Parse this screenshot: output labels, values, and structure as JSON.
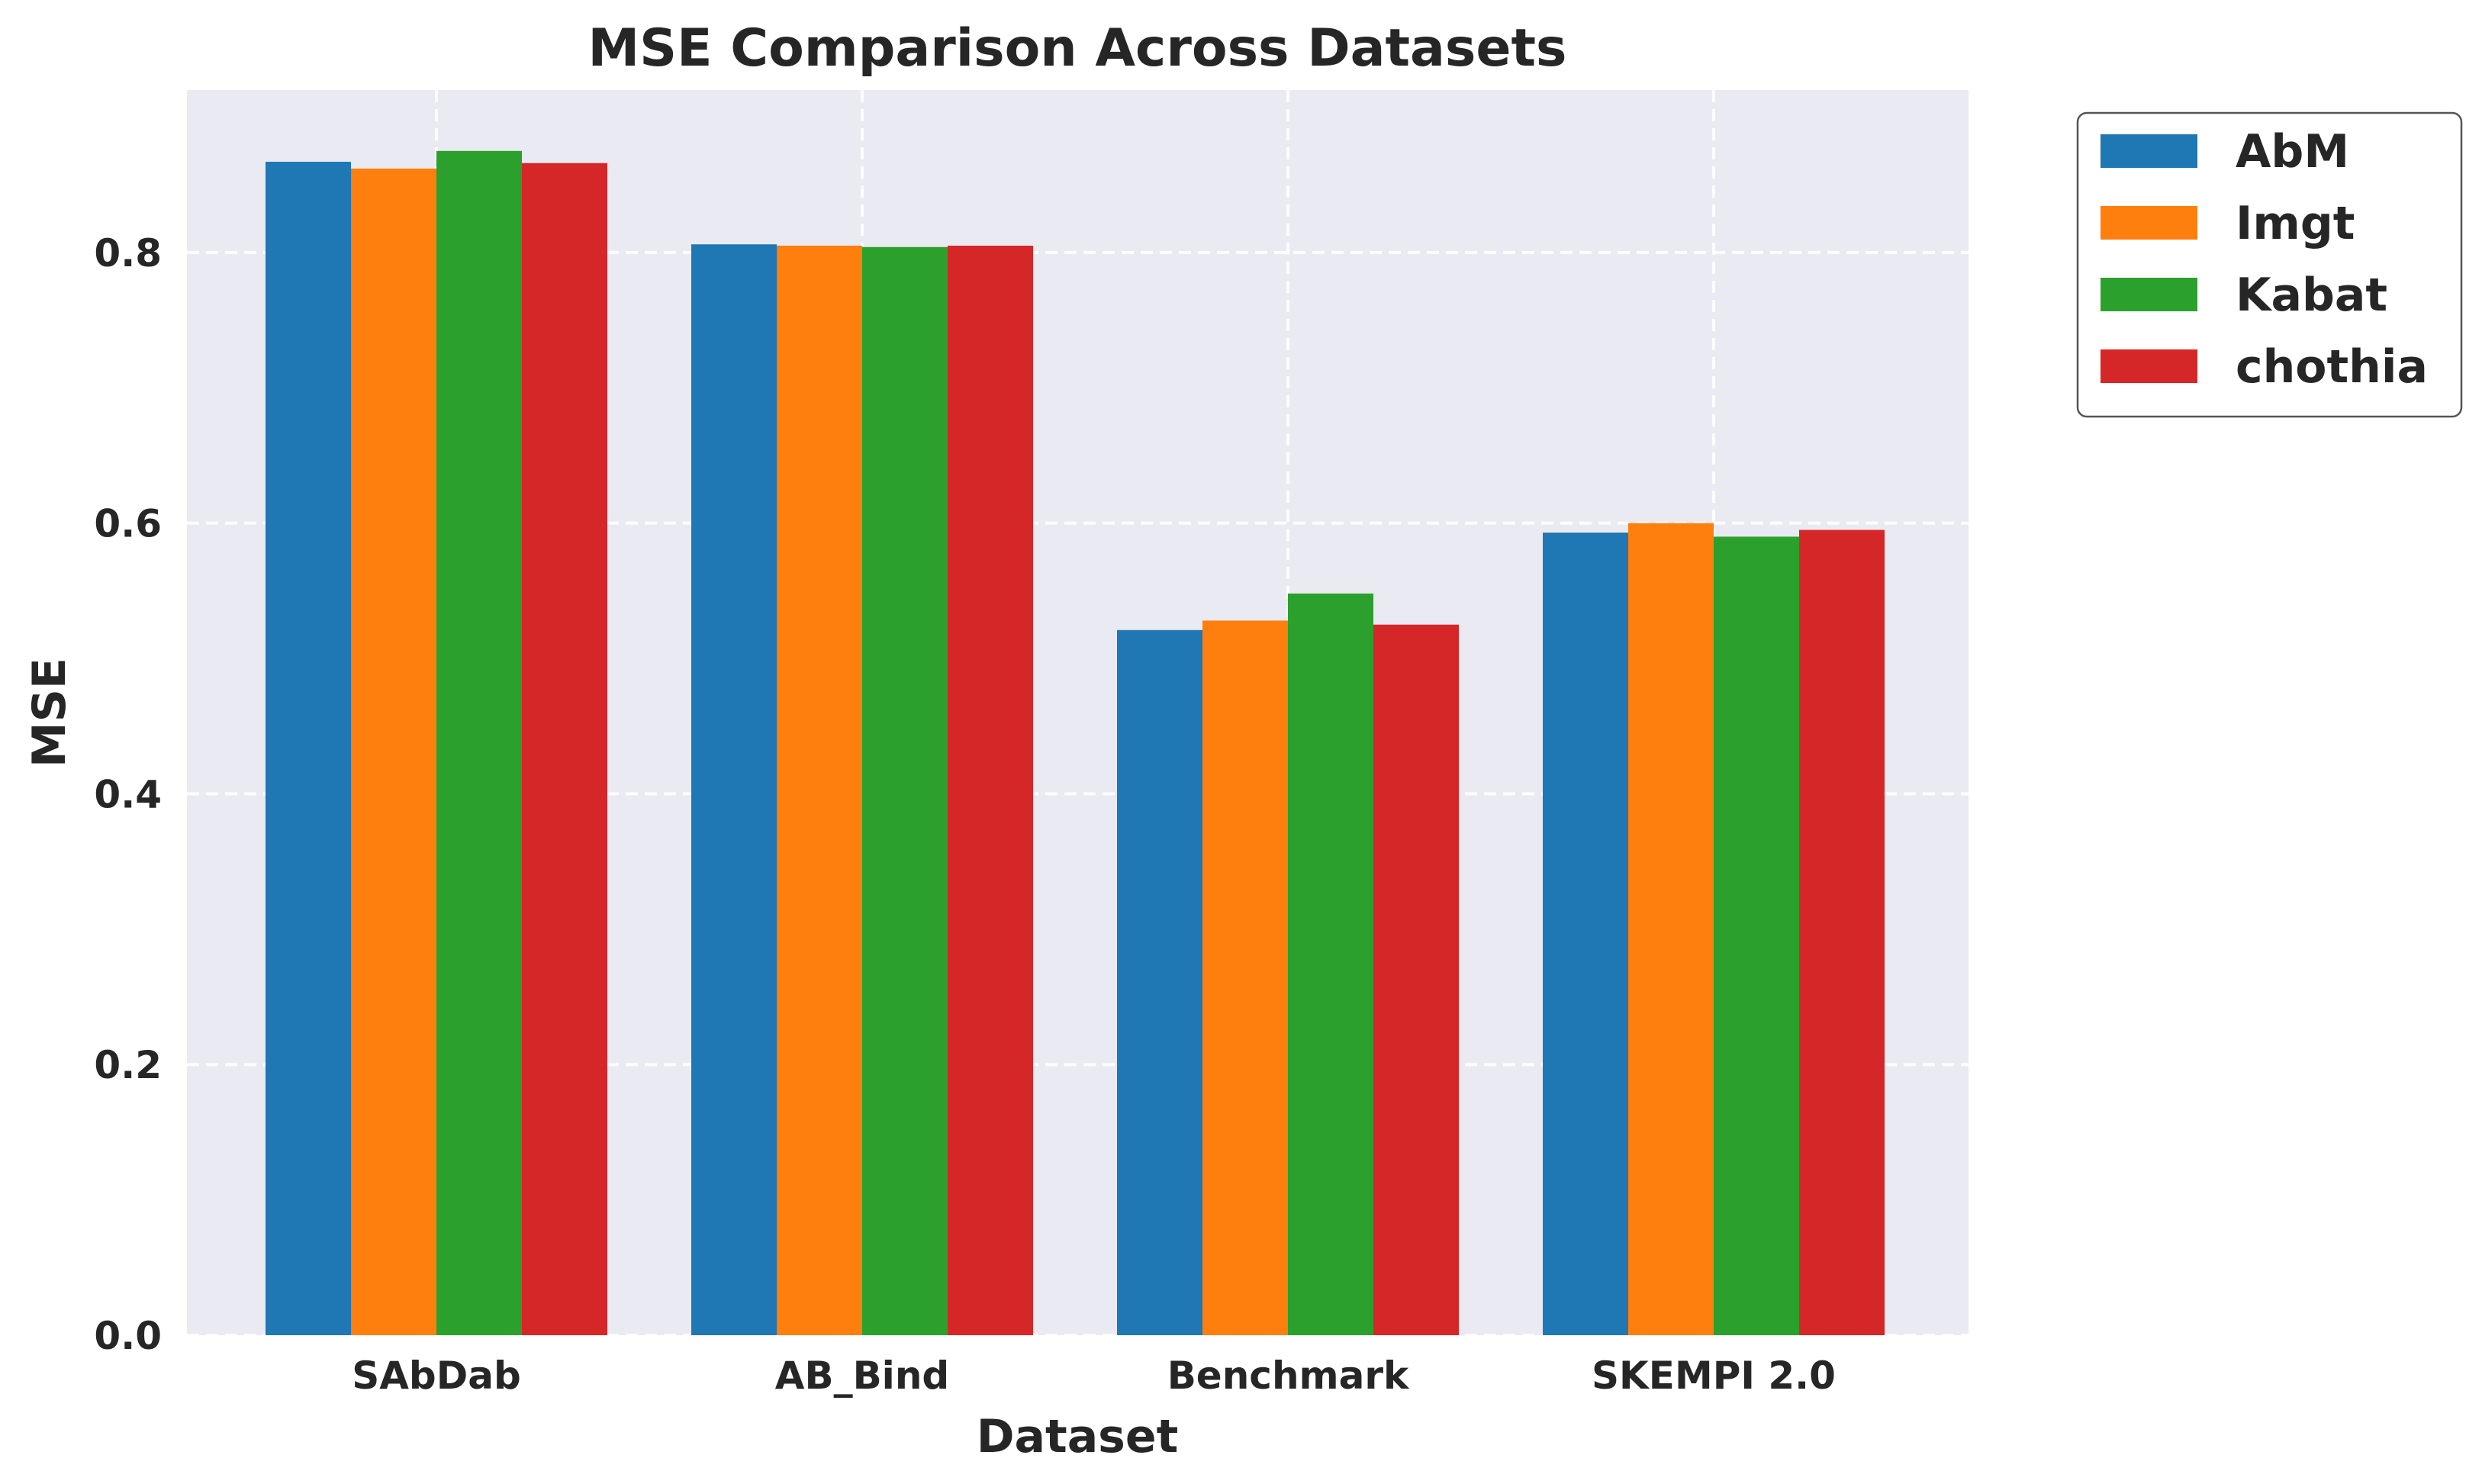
{
  "chart_data": {
    "type": "bar",
    "title": "MSE Comparison Across Datasets",
    "xlabel": "Dataset",
    "ylabel": "MSE",
    "categories": [
      "SAbDab",
      "AB_Bind",
      "Benchmark",
      "SKEMPI 2.0"
    ],
    "series": [
      {
        "name": "AbM",
        "color": "#1f77b4",
        "values": [
          0.867,
          0.806,
          0.521,
          0.593
        ]
      },
      {
        "name": "Imgt",
        "color": "#ff7f0e",
        "values": [
          0.862,
          0.805,
          0.528,
          0.6
        ]
      },
      {
        "name": "Kabat",
        "color": "#2ca02c",
        "values": [
          0.875,
          0.804,
          0.548,
          0.59
        ]
      },
      {
        "name": "chothia",
        "color": "#d62728",
        "values": [
          0.866,
          0.805,
          0.525,
          0.595
        ]
      }
    ],
    "ylim": [
      0,
      0.92
    ],
    "yticks": [
      0.0,
      0.2,
      0.4,
      0.6,
      0.8
    ],
    "ytick_labels": [
      "0.0",
      "0.2",
      "0.4",
      "0.6",
      "0.8"
    ],
    "grid": true,
    "legend_position": "outside-top-right",
    "background": "#eaeaf2"
  }
}
